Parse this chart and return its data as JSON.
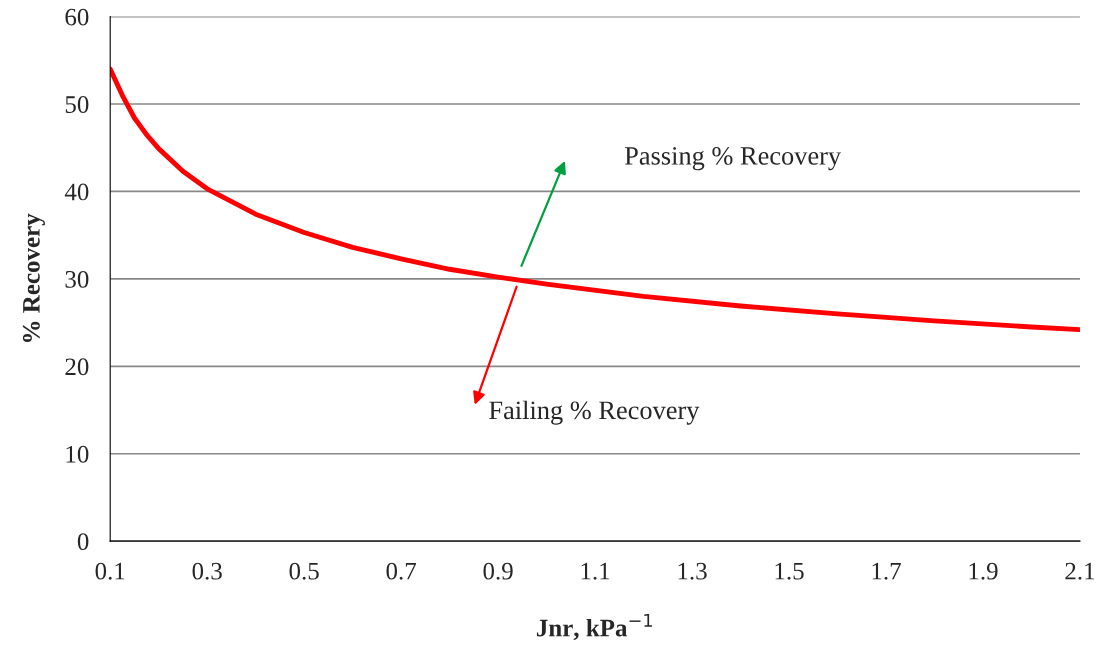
{
  "chart_data": {
    "type": "line",
    "xlabel": "Jnr, kPa$^{−1}$",
    "ylabel": "% Recovery",
    "x": [
      0.1,
      0.125,
      0.15,
      0.175,
      0.2,
      0.25,
      0.3,
      0.4,
      0.5,
      0.6,
      0.7,
      0.8,
      0.9,
      1.0,
      1.2,
      1.4,
      1.6,
      1.8,
      2.0,
      2.1
    ],
    "series": [
      {
        "color": "#ff0000",
        "values": [
          54,
          51,
          48.4,
          46.5,
          44.9,
          42.3,
          40.3,
          37.4,
          35.3,
          33.6,
          32.3,
          31.1,
          30.2,
          29.4,
          28.0,
          26.9,
          26.0,
          25.2,
          24.5,
          24.2
        ]
      }
    ],
    "xlim": [
      0.1,
      2.1
    ],
    "xticks": [
      0.1,
      0.3,
      0.5,
      0.7,
      0.9,
      1.1,
      1.3,
      1.5,
      1.7,
      1.9,
      2.1
    ],
    "ylim": [
      0,
      60
    ],
    "yticks": [
      0,
      10,
      20,
      30,
      40,
      50,
      60
    ],
    "grid": "y",
    "marker": "none",
    "line_style": "solid",
    "annotations": [
      "Passing % Recovery",
      "Failing % Recovery"
    ]
  }
}
